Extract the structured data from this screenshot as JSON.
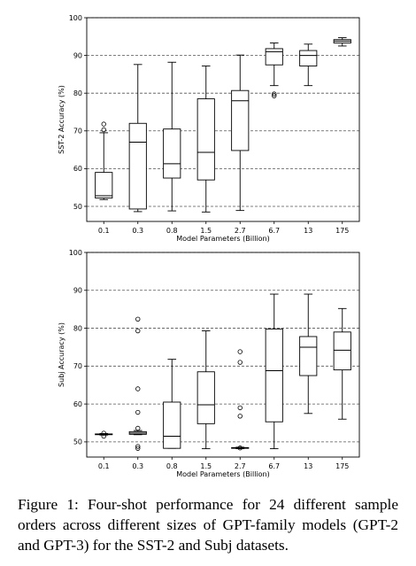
{
  "caption": "Figure 1: Four-shot performance for 24 different sample orders across different sizes of GPT-family models (GPT-2 and GPT-3) for the SST-2 and Subj datasets.",
  "chart_data": [
    {
      "type": "box",
      "ylabel": "SST-2 Accuracy (%)",
      "xlabel": "Model Parameters (Billion)",
      "categories": [
        "0.1",
        "0.3",
        "0.8",
        "1.5",
        "2.7",
        "6.7",
        "13",
        "175"
      ],
      "ylim": [
        46,
        100
      ],
      "yticks": [
        50,
        60,
        70,
        80,
        90,
        100
      ],
      "grid": "horizontal dashed",
      "boxes": [
        {
          "whislo": 51.8,
          "q1": 52.2,
          "med": 52.8,
          "q3": 59.0,
          "whishi": 69.5,
          "fliers": [
            70.3,
            71.8
          ]
        },
        {
          "whislo": 48.6,
          "q1": 49.3,
          "med": 67.0,
          "q3": 72.0,
          "whishi": 87.6,
          "fliers": []
        },
        {
          "whislo": 48.8,
          "q1": 57.5,
          "med": 61.3,
          "q3": 70.5,
          "whishi": 88.2,
          "fliers": []
        },
        {
          "whislo": 48.5,
          "q1": 57.0,
          "med": 64.3,
          "q3": 78.5,
          "whishi": 87.2,
          "fliers": []
        },
        {
          "whislo": 48.9,
          "q1": 64.8,
          "med": 78.0,
          "q3": 80.7,
          "whishi": 90.1,
          "fliers": []
        },
        {
          "whislo": 82.0,
          "q1": 87.5,
          "med": 91.0,
          "q3": 91.8,
          "whishi": 93.3,
          "fliers": [
            79.3,
            79.8
          ]
        },
        {
          "whislo": 82.0,
          "q1": 87.2,
          "med": 90.0,
          "q3": 91.3,
          "whishi": 93.0,
          "fliers": []
        },
        {
          "whislo": 92.5,
          "q1": 93.3,
          "med": 93.8,
          "q3": 94.2,
          "whishi": 94.7,
          "fliers": []
        }
      ]
    },
    {
      "type": "box",
      "ylabel": "Subj Accuracy (%)",
      "xlabel": "Model Parameters (Billion)",
      "categories": [
        "0.1",
        "0.3",
        "0.8",
        "1.5",
        "2.7",
        "6.7",
        "13",
        "175"
      ],
      "ylim": [
        46,
        100
      ],
      "yticks": [
        50,
        60,
        70,
        80,
        90,
        100
      ],
      "grid": "horizontal dashed",
      "boxes": [
        {
          "whislo": 51.8,
          "q1": 51.9,
          "med": 52.0,
          "q3": 52.1,
          "whishi": 52.2,
          "fliers": [
            51.5,
            52.3
          ]
        },
        {
          "whislo": 51.9,
          "q1": 52.0,
          "med": 52.3,
          "q3": 52.7,
          "whishi": 53.0,
          "fliers": [
            48.3,
            48.8,
            53.6,
            57.8,
            64.0,
            79.3,
            82.4
          ]
        },
        {
          "whislo": 48.3,
          "q1": 48.3,
          "med": 51.5,
          "q3": 60.5,
          "whishi": 71.8,
          "fliers": []
        },
        {
          "whislo": 48.2,
          "q1": 54.8,
          "med": 59.8,
          "q3": 68.5,
          "whishi": 79.3,
          "fliers": []
        },
        {
          "whislo": 48.2,
          "q1": 48.3,
          "med": 48.4,
          "q3": 48.5,
          "whishi": 48.6,
          "fliers": [
            48.4,
            56.8,
            59.0,
            71.0,
            73.8
          ]
        },
        {
          "whislo": 48.2,
          "q1": 55.3,
          "med": 68.8,
          "q3": 79.8,
          "whishi": 89.0,
          "fliers": []
        },
        {
          "whislo": 57.5,
          "q1": 67.5,
          "med": 75.0,
          "q3": 77.8,
          "whishi": 89.0,
          "fliers": []
        },
        {
          "whislo": 56.0,
          "q1": 69.0,
          "med": 74.2,
          "q3": 79.0,
          "whishi": 85.2,
          "fliers": []
        }
      ]
    }
  ]
}
